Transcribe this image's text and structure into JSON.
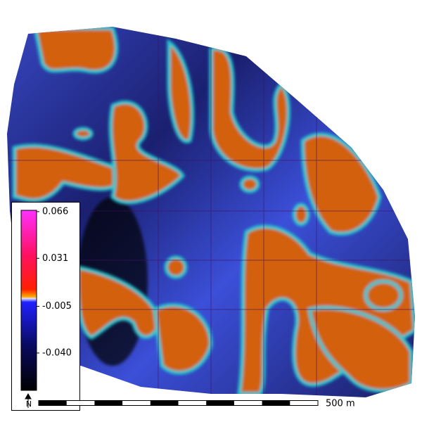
{
  "colorbar": {
    "range": [
      -0.068,
      0.067
    ],
    "ticks": [
      0.066,
      0.031,
      -0.005,
      {
        "value": -0.04,
        "label": "-0.040"
      }
    ]
  },
  "scale_bar": {
    "label": "500 m"
  },
  "north_arrow": {
    "label": "N"
  }
}
